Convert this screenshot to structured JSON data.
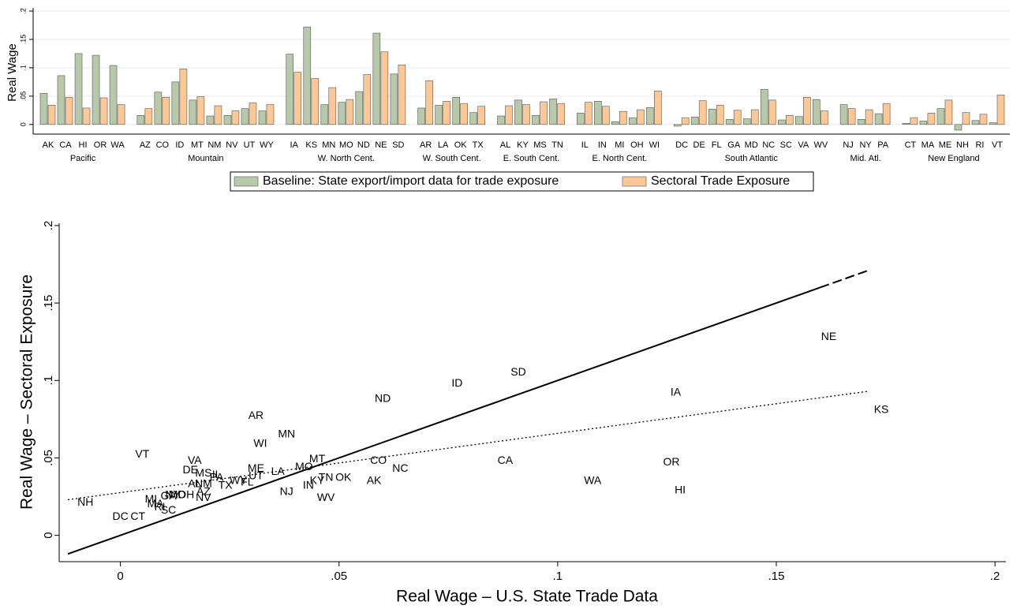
{
  "chart_data": [
    {
      "type": "bar",
      "ylabel": "Real Wage",
      "groups": [
        {
          "name": "Pacific",
          "categories": [
            "AK",
            "CA",
            "HI",
            "OR",
            "WA"
          ]
        },
        {
          "name": "Mountain",
          "categories": [
            "AZ",
            "CO",
            "ID",
            "MT",
            "NM",
            "NV",
            "UT",
            "WY"
          ]
        },
        {
          "name": "W. North Cent.",
          "categories": [
            "IA",
            "KS",
            "MN",
            "MO",
            "ND",
            "NE",
            "SD"
          ]
        },
        {
          "name": "W. South Cent.",
          "categories": [
            "AR",
            "LA",
            "OK",
            "TX"
          ]
        },
        {
          "name": "E. South Cent.",
          "categories": [
            "AL",
            "KY",
            "MS",
            "TN"
          ]
        },
        {
          "name": "E. North Cent.",
          "categories": [
            "IL",
            "IN",
            "MI",
            "OH",
            "WI"
          ]
        },
        {
          "name": "South Atlantic",
          "categories": [
            "DC",
            "DE",
            "FL",
            "GA",
            "MD",
            "NC",
            "SC",
            "VA",
            "WV"
          ]
        },
        {
          "name": "Mid. Atl.",
          "categories": [
            "NJ",
            "NY",
            "PA"
          ]
        },
        {
          "name": "New England",
          "categories": [
            "CT",
            "MA",
            "ME",
            "NH",
            "RI",
            "VT"
          ]
        }
      ],
      "series": [
        {
          "name": "Baseline: State export/import data for trade exposure",
          "color": "#b8c9a9",
          "values": [
            0.055,
            0.086,
            0.125,
            0.122,
            0.104,
            0.016,
            0.057,
            0.075,
            0.043,
            0.015,
            0.016,
            0.028,
            0.024,
            0.124,
            0.172,
            0.035,
            0.039,
            0.058,
            0.161,
            0.089,
            0.029,
            0.034,
            0.048,
            0.021,
            0.015,
            0.043,
            0.016,
            0.045,
            0.02,
            0.041,
            0.005,
            0.012,
            0.03,
            -0.003,
            0.013,
            0.027,
            0.009,
            0.01,
            0.062,
            0.008,
            0.014,
            0.044,
            0.035,
            0.009,
            0.019,
            0.002,
            0.006,
            0.028,
            -0.01,
            0.007,
            0.003
          ]
        },
        {
          "name": "Sectoral Trade Exposure",
          "color": "#fdc896",
          "values": [
            0.034,
            0.048,
            0.029,
            0.047,
            0.035,
            0.028,
            0.048,
            0.098,
            0.049,
            0.033,
            0.024,
            0.038,
            0.035,
            0.092,
            0.081,
            0.065,
            0.044,
            0.088,
            0.128,
            0.105,
            0.077,
            0.041,
            0.037,
            0.032,
            0.033,
            0.035,
            0.04,
            0.037,
            0.039,
            0.032,
            0.023,
            0.026,
            0.059,
            0.012,
            0.042,
            0.034,
            0.025,
            0.026,
            0.043,
            0.016,
            0.048,
            0.024,
            0.028,
            0.026,
            0.037,
            0.012,
            0.02,
            0.043,
            0.021,
            0.018,
            0.052
          ]
        }
      ],
      "ylim": [
        -0.017,
        0.2
      ],
      "yticks": [
        0,
        {
          "value": 0.05,
          "label": ".05"
        },
        {
          "value": 0.1,
          "label": ".1"
        },
        {
          "value": 0.15,
          "label": ".15"
        },
        {
          "value": 0.2,
          "label": ".2"
        }
      ],
      "grid": true
    },
    {
      "type": "scatter",
      "xlabel": "Real Wage – U.S. State Trade Data",
      "ylabel": "Real Wage – Sectoral Exposure",
      "labels": [
        "AK",
        "CA",
        "HI",
        "OR",
        "WA",
        "AZ",
        "CO",
        "ID",
        "MT",
        "NM",
        "NV",
        "UT",
        "WY",
        "IA",
        "KS",
        "MN",
        "MO",
        "ND",
        "NE",
        "SD",
        "AR",
        "LA",
        "OK",
        "TX",
        "AL",
        "KY",
        "MS",
        "TN",
        "IL",
        "IN",
        "MI",
        "OH",
        "WI",
        "DC",
        "DE",
        "FL",
        "GA",
        "MD",
        "NC",
        "SC",
        "VA",
        "WV",
        "NJ",
        "NY",
        "PA",
        "CT",
        "MA",
        "ME",
        "NH",
        "RI",
        "VT"
      ],
      "x": [
        0.058,
        0.088,
        0.128,
        0.126,
        0.108,
        0.019,
        0.059,
        0.077,
        0.045,
        0.019,
        0.019,
        0.031,
        0.027,
        0.127,
        0.174,
        0.038,
        0.042,
        0.06,
        0.162,
        0.091,
        0.031,
        0.036,
        0.051,
        0.024,
        0.017,
        0.045,
        0.019,
        0.047,
        0.022,
        0.043,
        0.007,
        0.015,
        0.032,
        0.0,
        0.016,
        0.029,
        0.011,
        0.013,
        0.064,
        0.011,
        0.017,
        0.047,
        0.038,
        0.012,
        0.022,
        0.004,
        0.008,
        0.031,
        -0.008,
        0.009,
        0.005
      ],
      "y": [
        0.035,
        0.048,
        0.029,
        0.047,
        0.035,
        0.028,
        0.048,
        0.098,
        0.049,
        0.033,
        0.024,
        0.038,
        0.035,
        0.092,
        0.081,
        0.065,
        0.044,
        0.088,
        0.128,
        0.105,
        0.077,
        0.041,
        0.037,
        0.032,
        0.033,
        0.035,
        0.04,
        0.037,
        0.039,
        0.032,
        0.023,
        0.026,
        0.059,
        0.012,
        0.042,
        0.034,
        0.025,
        0.026,
        0.043,
        0.016,
        0.048,
        0.024,
        0.028,
        0.026,
        0.037,
        0.012,
        0.02,
        0.043,
        0.021,
        0.018,
        0.052
      ],
      "lines": [
        {
          "x": [
            -0.012,
            0.16
          ],
          "y": [
            -0.012,
            0.16
          ],
          "dash": "solid"
        },
        {
          "x": [
            0.16,
            0.171
          ],
          "y": [
            0.16,
            0.171
          ],
          "dash": "dashed"
        },
        {
          "x": [
            -0.012,
            0.171
          ],
          "y": [
            0.023,
            0.093
          ],
          "dash": "dotted"
        }
      ],
      "xlim": [
        -0.014,
        0.2025
      ],
      "ylim": [
        -0.017,
        0.2015
      ],
      "xticks": [
        0,
        {
          "value": 0.05,
          "label": ".05"
        },
        {
          "value": 0.1,
          "label": ".1"
        },
        {
          "value": 0.15,
          "label": ".15"
        },
        {
          "value": 0.2,
          "label": ".2"
        }
      ],
      "yticks": [
        0,
        {
          "value": 0.05,
          "label": ".05"
        },
        {
          "value": 0.1,
          "label": ".1"
        },
        {
          "value": 0.15,
          "label": ".15"
        },
        {
          "value": 0.2,
          "label": ".2"
        }
      ]
    }
  ]
}
